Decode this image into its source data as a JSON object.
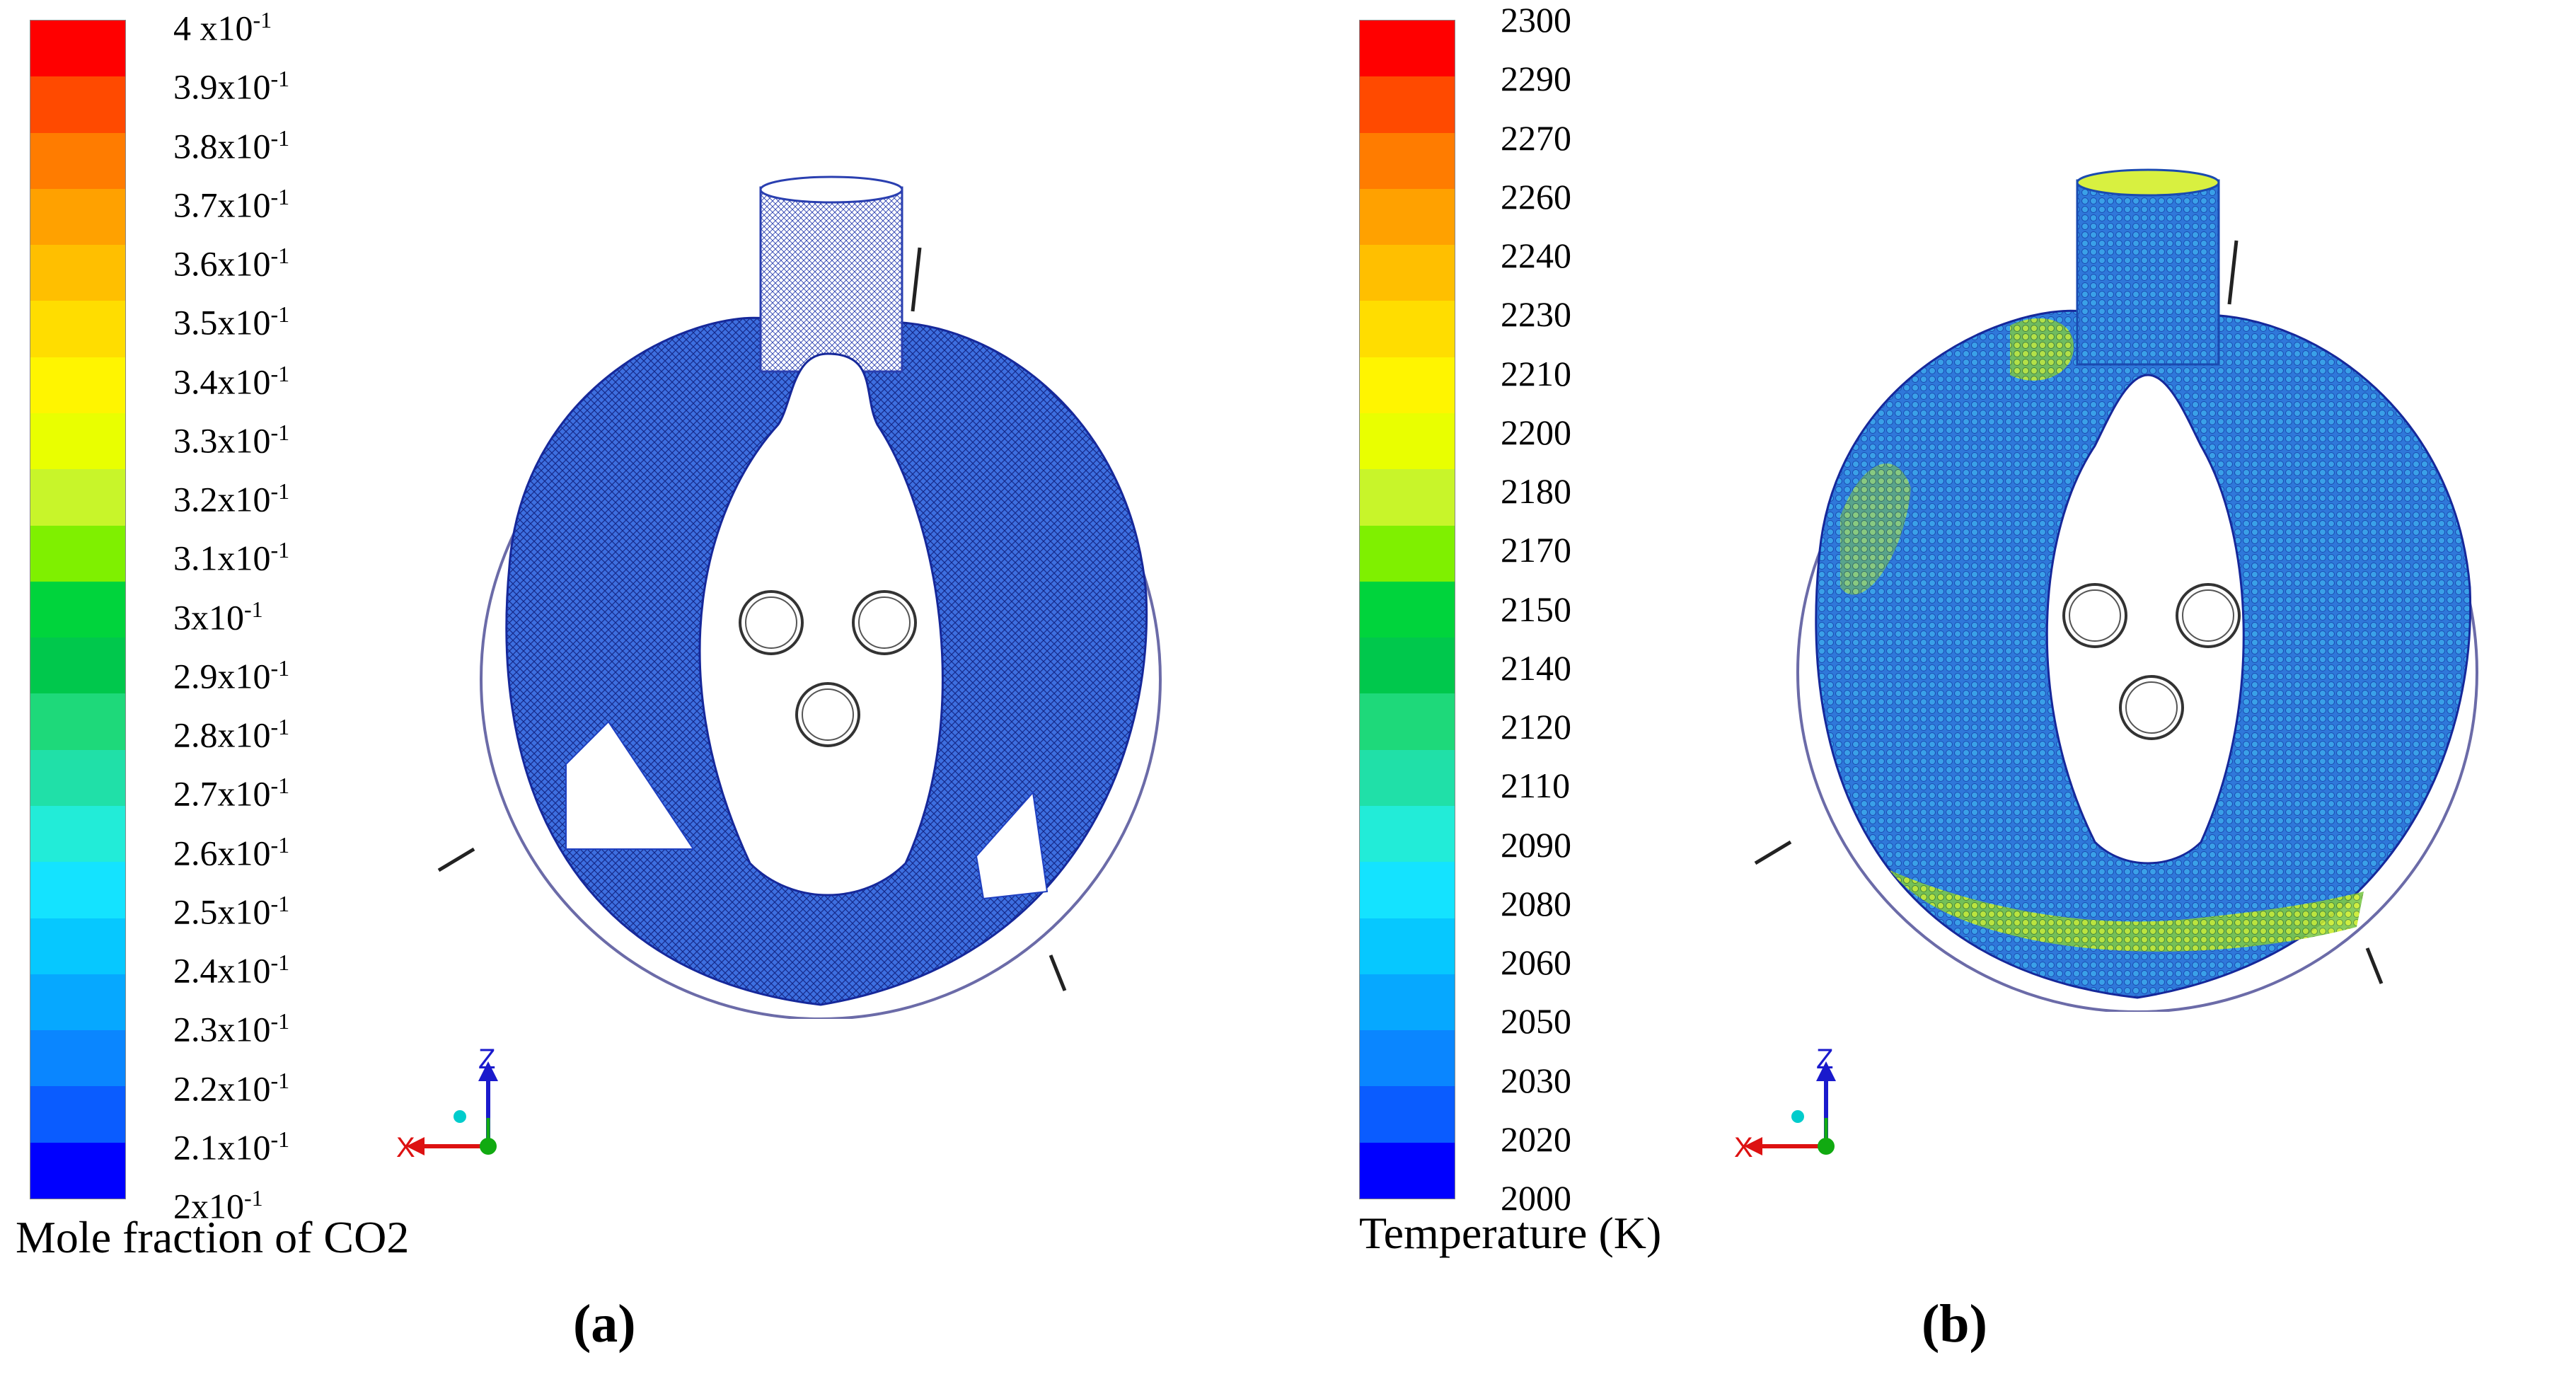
{
  "panels": [
    {
      "id": "a",
      "sublabel": "(a)",
      "legend_title": "Mole fraction of CO2",
      "ticks": [
        {
          "base": "4 x10",
          "exp": "-1"
        },
        {
          "base": "3.9x10",
          "exp": "-1"
        },
        {
          "base": "3.8x10",
          "exp": "-1"
        },
        {
          "base": "3.7x10",
          "exp": "-1"
        },
        {
          "base": "3.6x10",
          "exp": "-1"
        },
        {
          "base": "3.5x10",
          "exp": "-1"
        },
        {
          "base": "3.4x10",
          "exp": "-1"
        },
        {
          "base": "3.3x10",
          "exp": "-1"
        },
        {
          "base": "3.2x10",
          "exp": "-1"
        },
        {
          "base": "3.1x10",
          "exp": "-1"
        },
        {
          "base": "3x10",
          "exp": "-1"
        },
        {
          "base": "2.9x10",
          "exp": "-1"
        },
        {
          "base": "2.8x10",
          "exp": "-1"
        },
        {
          "base": "2.7x10",
          "exp": "-1"
        },
        {
          "base": "2.6x10",
          "exp": "-1"
        },
        {
          "base": "2.5x10",
          "exp": "-1"
        },
        {
          "base": "2.4x10",
          "exp": "-1"
        },
        {
          "base": "2.3x10",
          "exp": "-1"
        },
        {
          "base": "2.2x10",
          "exp": "-1"
        },
        {
          "base": "2.1x10",
          "exp": "-1"
        },
        {
          "base": "2x10",
          "exp": "-1"
        }
      ],
      "field_color": "#1e55d6",
      "mesh_color": "#1a2a9a"
    },
    {
      "id": "b",
      "sublabel": "(b)",
      "legend_title": "Temperature (K)",
      "ticks": [
        {
          "base": "2300",
          "exp": ""
        },
        {
          "base": "2290",
          "exp": ""
        },
        {
          "base": "2270",
          "exp": ""
        },
        {
          "base": "2260",
          "exp": ""
        },
        {
          "base": "2240",
          "exp": ""
        },
        {
          "base": "2230",
          "exp": ""
        },
        {
          "base": "2210",
          "exp": ""
        },
        {
          "base": "2200",
          "exp": ""
        },
        {
          "base": "2180",
          "exp": ""
        },
        {
          "base": "2170",
          "exp": ""
        },
        {
          "base": "2150",
          "exp": ""
        },
        {
          "base": "2140",
          "exp": ""
        },
        {
          "base": "2120",
          "exp": ""
        },
        {
          "base": "2110",
          "exp": ""
        },
        {
          "base": "2090",
          "exp": ""
        },
        {
          "base": "2080",
          "exp": ""
        },
        {
          "base": "2060",
          "exp": ""
        },
        {
          "base": "2050",
          "exp": ""
        },
        {
          "base": "2030",
          "exp": ""
        },
        {
          "base": "2020",
          "exp": ""
        },
        {
          "base": "2000",
          "exp": ""
        }
      ],
      "field_color": "#2a6fd8",
      "hot_color": "#b6e63a"
    }
  ],
  "colormap": [
    "#ff0000",
    "#ff4a00",
    "#ff7c00",
    "#ffa100",
    "#ffbf00",
    "#ffdd00",
    "#fff500",
    "#e9ff00",
    "#c8f52a",
    "#7ff000",
    "#00d43c",
    "#00c84c",
    "#1ed97a",
    "#20e0a8",
    "#22ecd8",
    "#14e3ff",
    "#06c8ff",
    "#06a8ff",
    "#0a86ff",
    "#0a5cff",
    "#0000ff"
  ],
  "axis_labels": {
    "z": "Z",
    "x": "X"
  },
  "axis_colors": {
    "z": "#1a1acc",
    "x": "#dd1111",
    "y": "#11aa11",
    "origin": "#00cccc"
  }
}
